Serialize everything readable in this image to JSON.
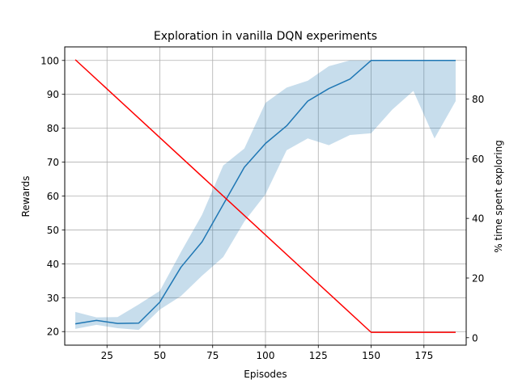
{
  "chart_data": {
    "type": "line",
    "title": "Exploration in vanilla DQN experiments",
    "xlabel": "Episodes",
    "ylabel": "Rewards",
    "y2label": "% time spent exploring",
    "xlim": [
      5,
      195
    ],
    "ylim": [
      16,
      104
    ],
    "y2lim": [
      -2.5,
      97.5
    ],
    "grid": true,
    "x_ticks": [
      25,
      50,
      75,
      100,
      125,
      150,
      175
    ],
    "y_ticks": [
      20,
      30,
      40,
      50,
      60,
      70,
      80,
      90,
      100
    ],
    "y2_ticks": [
      0,
      20,
      40,
      60,
      80
    ],
    "rewards": {
      "name": "Rewards",
      "axis": "left",
      "color": "#1f77b4",
      "band_color": "#1f77b4",
      "x": [
        10,
        20,
        30,
        40,
        50,
        60,
        70,
        80,
        90,
        100,
        110,
        120,
        130,
        140,
        150,
        160,
        170,
        180,
        190
      ],
      "mean": [
        22.3,
        23.3,
        22.4,
        22.5,
        28.7,
        39.0,
        46.5,
        57.5,
        68.5,
        75.5,
        80.7,
        88.0,
        91.7,
        94.5,
        100,
        100,
        100,
        100,
        100
      ],
      "upper": [
        25.8,
        24.2,
        24.3,
        28.0,
        32.0,
        43.5,
        54.5,
        69.0,
        74.0,
        87.5,
        92.0,
        94.0,
        98.3,
        100,
        100,
        100,
        100,
        100,
        100
      ],
      "lower": [
        20.8,
        22.0,
        21.0,
        20.5,
        26.5,
        30.5,
        36.5,
        42.0,
        52.5,
        60.5,
        73.5,
        77.0,
        75.0,
        78.0,
        78.5,
        85.5,
        91.0,
        77.0,
        88.0
      ]
    },
    "exploration": {
      "name": "% time spent exploring",
      "axis": "right",
      "color": "#ff0000",
      "x": [
        10,
        150,
        190
      ],
      "values": [
        93.2,
        1.8,
        1.8
      ]
    }
  }
}
